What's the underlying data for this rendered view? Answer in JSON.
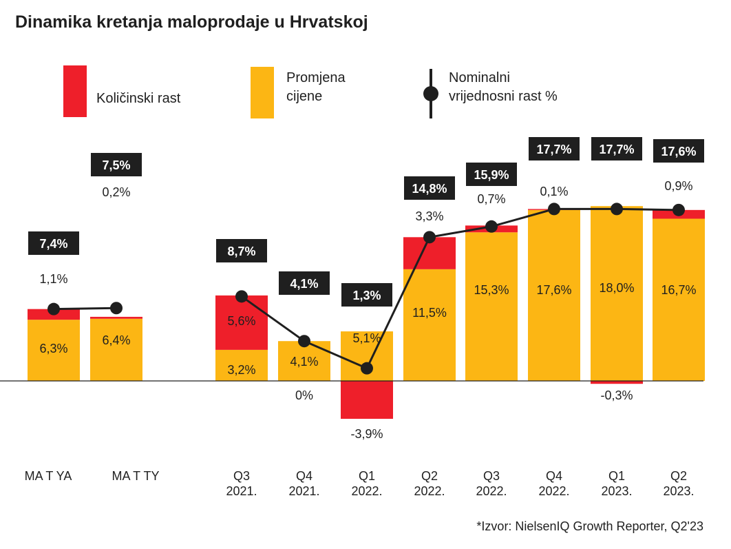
{
  "title": "Dinamika kretanja maloprodaje u Hrvatskoj",
  "legend": {
    "volume": "Količinski rast",
    "price_line1": "Promjena",
    "price_line2": "cijene",
    "nominal_line1": "Nominalni",
    "nominal_line2": "vrijednosni rast %"
  },
  "source": "*Izvor: NielsenIQ Growth Reporter, Q2'23",
  "colors": {
    "volume": "#ee1f2a",
    "price": "#fcb614",
    "line": "#1f1f1f",
    "box": "#1f1f1f",
    "box_text": "#ffffff"
  },
  "chart_data": {
    "type": "bar",
    "stacked": true,
    "title": "Dinamika kretanja maloprodaje u Hrvatskoj",
    "categories": [
      [
        "MA T YA"
      ],
      [
        "MA T TY"
      ],
      [
        "Q3",
        "2021."
      ],
      [
        "Q4",
        "2021."
      ],
      [
        "Q1",
        "2022."
      ],
      [
        "Q2",
        "2022."
      ],
      [
        "Q3",
        "2022."
      ],
      [
        "Q4",
        "2022."
      ],
      [
        "Q1",
        "2023."
      ],
      [
        "Q2",
        "2023."
      ]
    ],
    "series": [
      {
        "name": "Promjena cijene",
        "values": [
          6.3,
          6.4,
          3.2,
          4.1,
          5.1,
          11.5,
          15.3,
          17.6,
          18.0,
          16.7
        ],
        "labels": [
          "6,3%",
          "6,4%",
          "3,2%",
          "4,1%",
          "5,1%",
          "11,5%",
          "15,3%",
          "17,6%",
          "18,0%",
          "16,7%"
        ]
      },
      {
        "name": "Količinski rast",
        "values": [
          1.1,
          0.2,
          5.6,
          0.0,
          -3.9,
          3.3,
          0.7,
          0.1,
          -0.3,
          0.9
        ],
        "labels": [
          "1,1%",
          "0,2%",
          "5,6%",
          "0%",
          "-3,9%",
          "3,3%",
          "0,7%",
          "0,1%",
          "-0,3%",
          "0,9%"
        ]
      },
      {
        "name": "Nominalni vrijednosni rast %",
        "type": "line",
        "values": [
          7.4,
          7.5,
          8.7,
          4.1,
          1.3,
          14.8,
          15.9,
          17.7,
          17.7,
          17.6
        ],
        "labels": [
          "7,4%",
          "7,5%",
          "8,7%",
          "4,1%",
          "1,3%",
          "14,8%",
          "15,9%",
          "17,7%",
          "17,7%",
          "17,6%"
        ]
      }
    ],
    "line_segments": [
      [
        0,
        1
      ],
      [
        2,
        3,
        4,
        5,
        6,
        7,
        8,
        9
      ]
    ],
    "ylim": [
      -4.5,
      18.5
    ],
    "grid": false,
    "legend_position": "top"
  }
}
